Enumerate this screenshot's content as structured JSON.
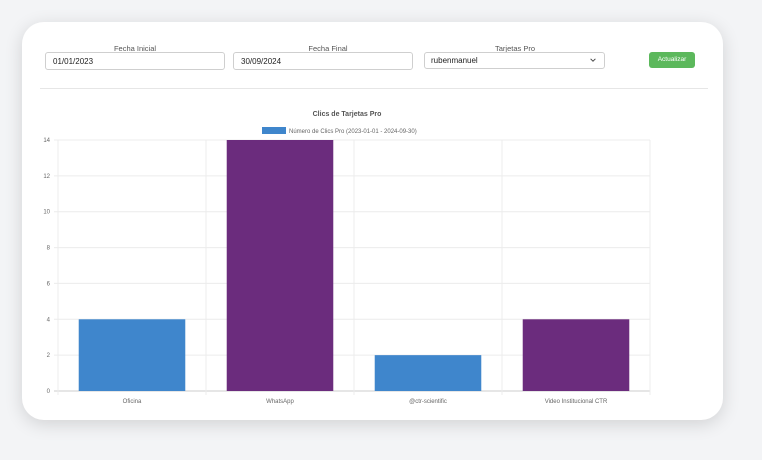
{
  "filters": {
    "start_date": {
      "label": "Fecha Inicial",
      "value": "01/01/2023"
    },
    "end_date": {
      "label": "Fecha Final",
      "value": "30/09/2024"
    },
    "card": {
      "label": "Tarjetas Pro",
      "value": "rubenmanuel"
    },
    "update_button": "Actualizar",
    "button_color": "#5cb85c"
  },
  "chart_data": {
    "type": "bar",
    "title": "Clics de Tarjetas Pro",
    "categories": [
      "Oficina",
      "WhatsApp",
      "@ctr-scientific",
      "Video Institucional CTR"
    ],
    "series": [
      {
        "name": "Número de Clics Pro (2023-01-01 - 2024-09-30)",
        "values": [
          4,
          14,
          2,
          4
        ]
      }
    ],
    "bar_colors": [
      "#3f86cc",
      "#6b2c7d",
      "#3f86cc",
      "#6b2c7d"
    ],
    "legend_color": "#3f86cc",
    "ylim": [
      0,
      14
    ],
    "yticks": [
      0,
      2,
      4,
      6,
      8,
      10,
      12,
      14
    ],
    "grid": true,
    "legend_position": "top"
  }
}
